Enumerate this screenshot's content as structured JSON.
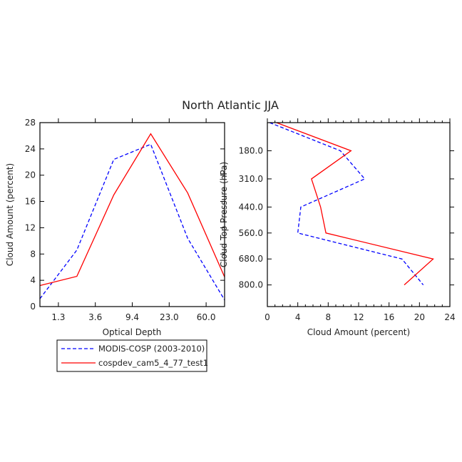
{
  "chart_data": [
    {
      "type": "line",
      "title": "North Atlantic JJA",
      "xlabel": "Optical Depth",
      "ylabel": "Cloud Amount (percent)",
      "xscale": "categorical bins",
      "x_tick_labels": [
        "1.3",
        "3.6",
        "9.4",
        "23.0",
        "60.0"
      ],
      "ylim": [
        0,
        28
      ],
      "y_tick_labels": [
        "0",
        "4",
        "8",
        "12",
        "16",
        "20",
        "24",
        "28"
      ],
      "y_ticks": [
        0,
        4,
        8,
        12,
        16,
        20,
        24,
        28
      ],
      "legend_placement": "below",
      "series": [
        {
          "name": "MODIS-COSP (2003-2010)",
          "color": "#0000ff",
          "style": "dashed",
          "values": [
            1.2,
            8.6,
            22.4,
            24.7,
            10.4,
            1.0
          ]
        },
        {
          "name": "cospdev_cam5_4_77_test1",
          "color": "#ff0000",
          "style": "solid",
          "values": [
            3.2,
            4.6,
            17.0,
            26.3,
            17.3,
            4.5
          ]
        }
      ]
    },
    {
      "type": "line",
      "xlabel": "Cloud Amount (percent)",
      "ylabel": "Cloud Top Pressure (hPa)",
      "xlim": [
        0,
        24
      ],
      "x_tick_labels": [
        "0",
        "4",
        "8",
        "12",
        "16",
        "20",
        "24"
      ],
      "x_ticks": [
        0,
        4,
        8,
        12,
        16,
        20,
        24
      ],
      "ylim": [
        50,
        900
      ],
      "y_reversed": true,
      "y_tick_labels": [
        "180.0",
        "310.0",
        "440.0",
        "560.0",
        "680.0",
        "800.0"
      ],
      "y_ticks": [
        180,
        310,
        440,
        560,
        680,
        800
      ],
      "series": [
        {
          "name": "MODIS-COSP (2003-2010)",
          "color": "#0000ff",
          "style": "dashed",
          "x": [
            0.3,
            9.6,
            12.8,
            4.4,
            4.0,
            17.7,
            20.5
          ],
          "y": [
            50,
            180,
            310,
            440,
            560,
            680,
            800
          ]
        },
        {
          "name": "cospdev_cam5_4_77_test1",
          "color": "#ff0000",
          "style": "solid",
          "x": [
            1.2,
            11.0,
            5.8,
            7.0,
            7.7,
            21.8,
            18.0
          ],
          "y": [
            50,
            180,
            310,
            440,
            560,
            680,
            800
          ]
        }
      ]
    }
  ]
}
